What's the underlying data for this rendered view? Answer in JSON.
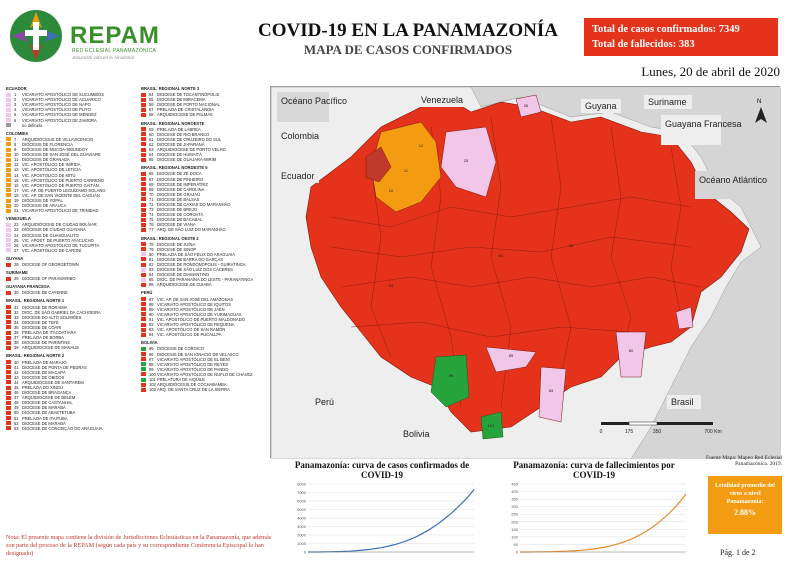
{
  "brand": {
    "name": "REPAM",
    "subtitle": "RED ECLESIAL PANAMAZÓNICA",
    "tagline": "Jesucristo vida en la Amazonía"
  },
  "title": "COVID-19 EN LA PANAMAZONÍA",
  "subtitle": "MAPA DE CASOS CONFIRMADOS",
  "stats": {
    "cases_label": "Total de casos confirmados: 7349",
    "deaths_label": "Total de fallecidos: 383"
  },
  "date": "Lunes, 20 de abril de 2020",
  "colors": {
    "red": "#e5321b",
    "orange": "#f39c12",
    "pink": "#f2c6e8",
    "green": "#27a33c",
    "grey": "#9a9a9a",
    "ocean": "#d5d5d5"
  },
  "legend_left": [
    {
      "header": "ECUADOR",
      "items": [
        {
          "n": "1",
          "t": "VICARIATO APOSTÓLICO DE SUCUMBÍOS",
          "c": "#f2c6e8"
        },
        {
          "n": "2",
          "t": "VICARIATO APOSTÓLICO DE AGUARICO",
          "c": "#f2c6e8"
        },
        {
          "n": "3",
          "t": "VICARIATO APOSTÓLICO DE NAPO",
          "c": "#f2c6e8"
        },
        {
          "n": "4",
          "t": "VICARIATO APOSTÓLICO DE PUYO",
          "c": "#f2c6e8"
        },
        {
          "n": "5",
          "t": "VICARIATO APOSTÓLICO DE MÉNDEZ",
          "c": "#f2c6e8"
        },
        {
          "n": "6",
          "t": "VICARIATO APOSTÓLICO DE ZAMORA",
          "c": "#f2c6e8"
        },
        {
          "n": "",
          "t": "no definido",
          "c": "#9a9a9a"
        }
      ]
    },
    {
      "header": "COLOMBIA",
      "items": [
        {
          "n": "7",
          "t": "ARQUIDIÓCESIS DE VILLAVICENCIO",
          "c": "#f39c12"
        },
        {
          "n": "8",
          "t": "DIÓCESIS DE FLORENCIA",
          "c": "#f39c12"
        },
        {
          "n": "9",
          "t": "DIÓCESIS DE MOCOA-SIBUNDOY",
          "c": "#f39c12"
        },
        {
          "n": "10",
          "t": "DIÓCESIS DE SAN JOSÉ DEL GUAVIARE",
          "c": "#f39c12"
        },
        {
          "n": "11",
          "t": "DIÓCESIS DE GRANADA",
          "c": "#f39c12"
        },
        {
          "n": "12",
          "t": "VIC. APOSTÓLICO DE INÍRIDA",
          "c": "#f39c12"
        },
        {
          "n": "13",
          "t": "VIC. APOSTÓLICO DE LETICIA",
          "c": "#f39c12"
        },
        {
          "n": "14",
          "t": "VIC. APOSTÓLICO DE MITÚ",
          "c": "#f39c12"
        },
        {
          "n": "15",
          "t": "VIC. APOSTÓLICO DE PUERTO CARREÑO",
          "c": "#f39c12"
        },
        {
          "n": "16",
          "t": "VIC. APOSTÓLICO DE PUERTO GAITÁN",
          "c": "#f39c12"
        },
        {
          "n": "17",
          "t": "VIC. AP. DE PUERTO LEGUÍZAMO-SOLANO",
          "c": "#f39c12"
        },
        {
          "n": "18",
          "t": "VIC. AP. DE SAN VICENTE DEL CAGUÁN",
          "c": "#f39c12"
        },
        {
          "n": "19",
          "t": "DIÓCESIS DE YOPAL",
          "c": "#f39c12"
        },
        {
          "n": "20",
          "t": "DIÓCESIS DE ARAUCA",
          "c": "#f39c12"
        },
        {
          "n": "21",
          "t": "VICARIATO APOSTÓLICO DE TRINIDAD",
          "c": "#f39c12"
        }
      ]
    },
    {
      "header": "VENEZUELA",
      "items": [
        {
          "n": "22",
          "t": "ARQUIDIÓCESIS DE CIUDAD BOLÍVAR",
          "c": "#f2c6e8"
        },
        {
          "n": "23",
          "t": "DIÓCESIS DE CIUDAD GUAYANA",
          "c": "#f2c6e8"
        },
        {
          "n": "24",
          "t": "DIÓCESIS DE GUASDUALITO",
          "c": "#f2c6e8"
        },
        {
          "n": "25",
          "t": "VIC. APOST. DE PUERTO AYACUCHO",
          "c": "#f2c6e8"
        },
        {
          "n": "26",
          "t": "VICARIATO APOSTÓLICO DE TUCUPITA",
          "c": "#f2c6e8"
        },
        {
          "n": "27",
          "t": "VIC. APOSTÓLICO DE CARONÍ",
          "c": "#f2c6e8"
        }
      ]
    },
    {
      "header": "GUYANA",
      "items": [
        {
          "n": "28",
          "t": "DIOCESE OF GEORGETOWN",
          "c": "#e5321b"
        }
      ]
    },
    {
      "header": "SURINAME",
      "items": [
        {
          "n": "29",
          "t": "DIOCESE OF PARAMARIBO",
          "c": "#e5321b"
        }
      ]
    },
    {
      "header": "GUAYANA FRANCESA",
      "items": [
        {
          "n": "30",
          "t": "DIOCESE DE CAYENNE",
          "c": "#e5321b"
        }
      ]
    },
    {
      "header": "BRASIL: REGIONAL NORTE 1",
      "items": [
        {
          "n": "31",
          "t": "DIOCESE DE RORAIMA",
          "c": "#e5321b"
        },
        {
          "n": "32",
          "t": "DIOC. DE SÃO GABRIEL DA CACHOEIRA",
          "c": "#e5321b"
        },
        {
          "n": "33",
          "t": "DIOCESE DO ALTO SOLIMÕES",
          "c": "#e5321b"
        },
        {
          "n": "34",
          "t": "DIOCESE DE TEFÉ",
          "c": "#e5321b"
        },
        {
          "n": "35",
          "t": "DIOCESE DE COARI",
          "c": "#e5321b"
        },
        {
          "n": "36",
          "t": "PRELAZIA DE ITACOATIARA",
          "c": "#e5321b"
        },
        {
          "n": "37",
          "t": "PRELAZIA DE BORBA",
          "c": "#e5321b"
        },
        {
          "n": "38",
          "t": "DIOCESE DE PARINTINS",
          "c": "#e5321b"
        },
        {
          "n": "39",
          "t": "ARQUIDIOCESE DE MANAUS",
          "c": "#e5321b"
        }
      ]
    },
    {
      "header": "BRASIL: REGIONAL NORTE 2",
      "items": [
        {
          "n": "40",
          "t": "PRELAZIA DE MARAJÓ",
          "c": "#e5321b"
        },
        {
          "n": "41",
          "t": "DIOCESE DE PONTA DE PEDRAS",
          "c": "#e5321b"
        },
        {
          "n": "42",
          "t": "DIOCESE DE MACAPÁ",
          "c": "#e5321b"
        },
        {
          "n": "43",
          "t": "DIOCESE DE ÓBIDOS",
          "c": "#e5321b"
        },
        {
          "n": "44",
          "t": "ARQUIDIOCESE DE SANTARÉM",
          "c": "#e5321b"
        },
        {
          "n": "45",
          "t": "PRELAZIA DO XINGU",
          "c": "#e5321b"
        },
        {
          "n": "46",
          "t": "DIOCESE DE BRAGANÇA",
          "c": "#e5321b"
        },
        {
          "n": "47",
          "t": "ARQUIDIOCESE DE BELÉM",
          "c": "#e5321b"
        },
        {
          "n": "48",
          "t": "DIOCESE DE CASTANHAL",
          "c": "#e5321b"
        },
        {
          "n": "49",
          "t": "DIOCESE DE MARABÁ",
          "c": "#e5321b"
        },
        {
          "n": "50",
          "t": "DIOCESE DE ABAETETUBA",
          "c": "#e5321b"
        },
        {
          "n": "51",
          "t": "PRELAZIA DE ITAITUBA",
          "c": "#e5321b"
        },
        {
          "n": "52",
          "t": "DIOCESE DE MARABÁ",
          "c": "#e5321b"
        },
        {
          "n": "53",
          "t": "DIOCESE DE CONCEIÇÃO DO ARAGUAIA",
          "c": "#e5321b"
        }
      ]
    }
  ],
  "legend_right": [
    {
      "header": "BRASIL: REGIONAL NORTE 3",
      "items": [
        {
          "n": "54",
          "t": "DIOCESE DE TOCANTINÓPOLIS",
          "c": "#e5321b"
        },
        {
          "n": "55",
          "t": "DIOCESE DE MIRACEMA",
          "c": "#e5321b"
        },
        {
          "n": "56",
          "t": "DIOCESE DE PORTO NACIONAL",
          "c": "#e5321b"
        },
        {
          "n": "57",
          "t": "PRELAZIA DE CRISTALÂNDIA",
          "c": "#e5321b"
        },
        {
          "n": "58",
          "t": "ARQUIDIOCESE DE PALMAS",
          "c": "#e5321b"
        }
      ]
    },
    {
      "header": "BRASIL: REGIONAL NOROESTE",
      "items": [
        {
          "n": "59",
          "t": "PRELAZIA DE LÁBREA",
          "c": "#e5321b"
        },
        {
          "n": "60",
          "t": "DIOCESE DE RIO BRANCO",
          "c": "#e5321b"
        },
        {
          "n": "61",
          "t": "DIOCESE DE CRUZEIRO DO SUL",
          "c": "#e5321b"
        },
        {
          "n": "62",
          "t": "DIOCESE DE JI-PARANÁ",
          "c": "#e5321b"
        },
        {
          "n": "63",
          "t": "ARQUIDIOCESE DE PORTO VELHO",
          "c": "#e5321b"
        },
        {
          "n": "64",
          "t": "DIOCESE DE HUMAITÁ",
          "c": "#e5321b"
        },
        {
          "n": "65",
          "t": "DIOCESE DE GUAJARÁ-MIRIM",
          "c": "#e5321b"
        }
      ]
    },
    {
      "header": "BRASIL: REGIONAL NORDESTE 5",
      "items": [
        {
          "n": "66",
          "t": "DIOCESE DE ZÉ DOCA",
          "c": "#e5321b"
        },
        {
          "n": "67",
          "t": "DIOCESE DE PINHEIRO",
          "c": "#e5321b"
        },
        {
          "n": "68",
          "t": "DIOCESE DE IMPERATRIZ",
          "c": "#e5321b"
        },
        {
          "n": "69",
          "t": "DIOCESE DE CAROLINA",
          "c": "#e5321b"
        },
        {
          "n": "70",
          "t": "DIOCESE DE GRAJAÚ",
          "c": "#e5321b"
        },
        {
          "n": "71",
          "t": "DIOCESE DE BALSAS",
          "c": "#e5321b"
        },
        {
          "n": "72",
          "t": "DIOCESE DE CAXIAS DO MARANHÃO",
          "c": "#e5321b"
        },
        {
          "n": "73",
          "t": "DIOCESE DE BREJO",
          "c": "#e5321b"
        },
        {
          "n": "74",
          "t": "DIOCESE DE COROATÁ",
          "c": "#e5321b"
        },
        {
          "n": "75",
          "t": "DIOCESE DE BACABAL",
          "c": "#e5321b"
        },
        {
          "n": "76",
          "t": "DIOCESE DE VIANA",
          "c": "#e5321b"
        },
        {
          "n": "77",
          "t": "ARQ. DE SÃO LUIZ DO MARANHÃO",
          "c": "#e5321b"
        }
      ]
    },
    {
      "header": "BRASIL: REGIONAL OESTE 2",
      "items": [
        {
          "n": "78",
          "t": "DIOCESE DE JUÍNA",
          "c": "#e5321b"
        },
        {
          "n": "79",
          "t": "DIOCESE DE SINOP",
          "c": "#e5321b"
        },
        {
          "n": "80",
          "t": "PRELAZIA DE SÃO FÉLIX DO ARAGUAIA",
          "c": "#f2c6e8"
        },
        {
          "n": "81",
          "t": "DIOCESE DE BARRA DO GARÇAS",
          "c": "#e5321b"
        },
        {
          "n": "82",
          "t": "DIOCESE DE RONDONÓPOLIS - GUIRATINGA",
          "c": "#e5321b"
        },
        {
          "n": "83",
          "t": "DIOCESE DE SÃO LUIZ DOS CÁCERES",
          "c": "#f2c6e8"
        },
        {
          "n": "84",
          "t": "DIOCESE DE DIAMANTINO",
          "c": "#e5321b"
        },
        {
          "n": "85",
          "t": "DIOC. DE PARANAÍNA DO LESTE - PARANATINGA",
          "c": "#f2c6e8"
        },
        {
          "n": "86",
          "t": "ARQUIDIOCESE DE CUIABÁ",
          "c": "#e5321b"
        }
      ]
    },
    {
      "header": "PERÚ",
      "items": [
        {
          "n": "87",
          "t": "VIC. AP. DE SAN JOSÉ DEL AMAZONAS",
          "c": "#e5321b"
        },
        {
          "n": "88",
          "t": "VICARIATO APOSTÓLICO DE IQUITOS",
          "c": "#e5321b"
        },
        {
          "n": "89",
          "t": "VICARIATO APOSTÓLICO DE JAÉN",
          "c": "#e5321b"
        },
        {
          "n": "90",
          "t": "VICARIATO APOSTÓLICO DE YURIMAGUAS",
          "c": "#e5321b"
        },
        {
          "n": "91",
          "t": "VIC. APOSTÓLICO DE PUERTO MALDONADO",
          "c": "#e5321b"
        },
        {
          "n": "92",
          "t": "VICARIATO APOSTÓLICO DE REQUENA",
          "c": "#e5321b"
        },
        {
          "n": "93",
          "t": "VIC. APOSTÓLICO DE SAN RAMÓN",
          "c": "#e5321b"
        },
        {
          "n": "94",
          "t": "VIC. APOSTÓLICO DE PUCALLPA",
          "c": "#e5321b"
        }
      ]
    },
    {
      "header": "BOLIVIA",
      "items": [
        {
          "n": "95",
          "t": "DIÓCESIS DE COROICO",
          "c": "#27a33c"
        },
        {
          "n": "96",
          "t": "DIÓCESIS DE SAN IGNACIO DE VELASCO",
          "c": "#e5321b"
        },
        {
          "n": "97",
          "t": "VICARIATO APOSTÓLICO DE EL BENI",
          "c": "#e5321b"
        },
        {
          "n": "98",
          "t": "VICARIATO APOSTÓLICO DE REYES",
          "c": "#27a33c"
        },
        {
          "n": "99",
          "t": "VICARIATO APOSTÓLICO DE PANDO",
          "c": "#27a33c"
        },
        {
          "n": "100",
          "t": "VICARIATO APOSTÓLICO DE ÑUFLO DE CHÁVEZ",
          "c": "#e5321b"
        },
        {
          "n": "101",
          "t": "PRELATURA DE AIQUILE",
          "c": "#27a33c"
        },
        {
          "n": "102",
          "t": "ARQUIDIÓCESIS DE COCHABAMBA",
          "c": "#e5321b"
        },
        {
          "n": "103",
          "t": "ARQ. DE SANTA CRUZ DE LA SIERRA",
          "c": "#e5321b"
        }
      ]
    }
  ],
  "map_labels": {
    "ocean_pacific": "Océano Pacífico",
    "ocean_atlantic": "Océano Atlántico",
    "colombia": "Colombia",
    "venezuela": "Venezuela",
    "guyana": "Guyana",
    "suriname": "Suriname",
    "guayana_francesa": "Guayana Francesa",
    "ecuador": "Ecuador",
    "peru": "Perú",
    "bolivia": "Bolivia",
    "brasil": "Brasil"
  },
  "scale": {
    "ticks": [
      "0",
      "175",
      "350",
      "700 Km"
    ]
  },
  "credit": "Fuente Mapa: Mapeo Red Eclesial Panamazónica. 2019.",
  "charts": [
    {
      "title": "Panamazonía: curva de casos confirmados de COVID-19",
      "color": "#3b6fb6",
      "yticks": [
        "0",
        "1000",
        "2000",
        "3000",
        "4000",
        "5000",
        "6000",
        "7000",
        "8000"
      ],
      "ymax": 8000,
      "values": [
        1,
        3,
        5,
        10,
        18,
        30,
        45,
        70,
        100,
        140,
        190,
        250,
        320,
        400,
        500,
        620,
        760,
        920,
        1100,
        1320,
        1560,
        1840,
        2150,
        2500,
        2880,
        3300,
        3760,
        4250,
        4780,
        5350,
        5950,
        6600,
        7349
      ]
    },
    {
      "title": "Panamazonía: curva de fallecimientos por COVID-19",
      "color": "#e88b2e",
      "yticks": [
        "0",
        "50",
        "100",
        "150",
        "200",
        "250",
        "300",
        "350",
        "400",
        "450"
      ],
      "ymax": 450,
      "values": [
        0,
        0,
        0,
        1,
        1,
        2,
        2,
        3,
        4,
        5,
        7,
        9,
        12,
        15,
        19,
        24,
        30,
        37,
        45,
        55,
        66,
        79,
        94,
        111,
        130,
        152,
        176,
        203,
        233,
        265,
        300,
        340,
        383
      ]
    }
  ],
  "rate": {
    "label": "Letalidad promedio del virus a nivel Panamazonía:",
    "value": "2.88%"
  },
  "note": "Nota: El presente mapa contiene la división de Jurisdicciones Eclesiásticas en la Panamazonía, que además son parte del proceso de la REPAM (según cada país y su correspondiente Conferencia Episcopal lo han designado)",
  "page": "Pág. 1 de 2"
}
